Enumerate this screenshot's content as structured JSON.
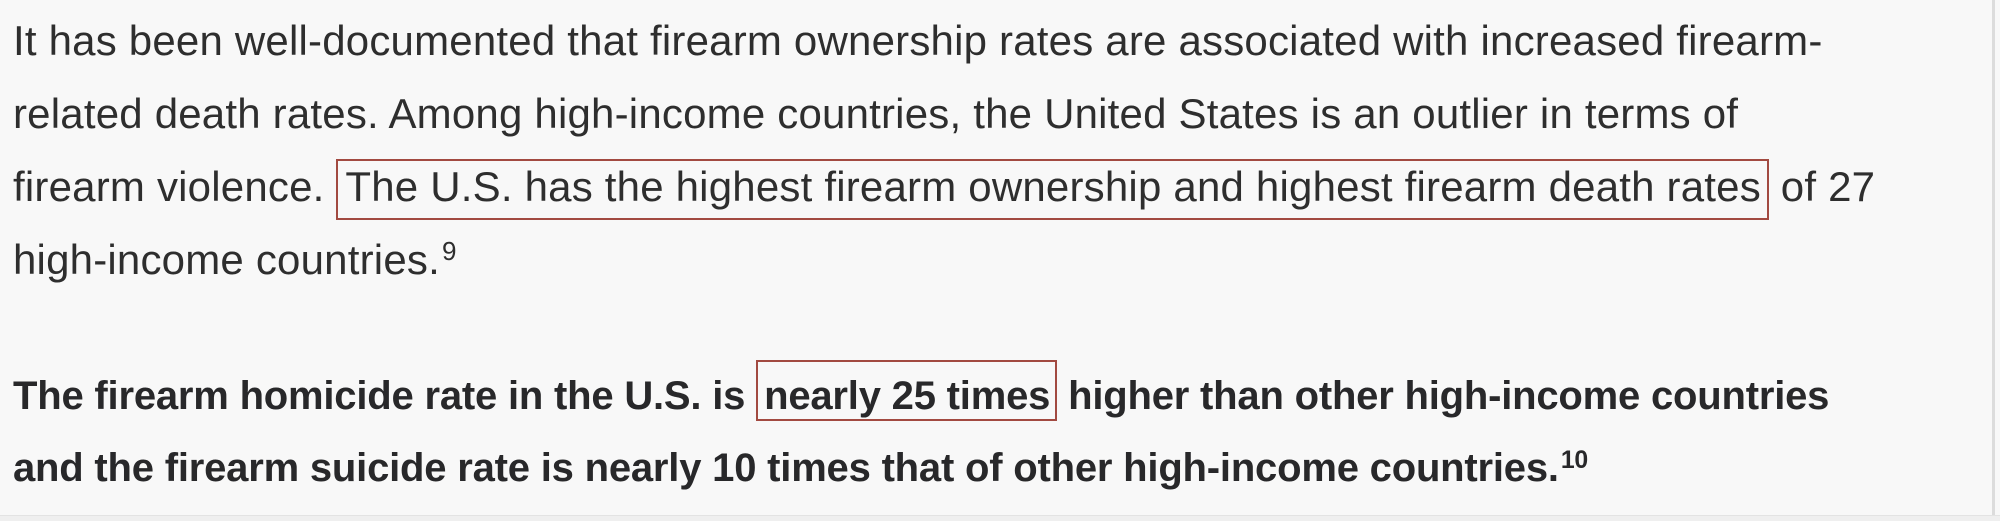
{
  "colors": {
    "bg": "#f8f8f8",
    "text": "#2e2e2e",
    "text-bold": "#28282a",
    "accent": "#a24a41",
    "divider-right": "#dcdcdc",
    "divider-bottom": "#efefef",
    "divider-bottom-edge": "#e3e3e3"
  },
  "article": {
    "paragraph1": {
      "line1": "It has been well-documented that firearm ownership rates are associated with increased firearm-",
      "line2": "related death rates. Among high-income countries, the United States is an outlier in terms of",
      "line3_pre": "firearm violence. ",
      "line3_boxed": "The U.S. has the highest firearm ownership and highest firearm death rates",
      "line3_post": " of 27",
      "line4": "high-income countries.",
      "line4_footnote": "9"
    },
    "paragraph2": {
      "line1_pre": "The firearm homicide rate in the U.S. is ",
      "line1_boxed": "nearly 25 times",
      "line1_post": " higher than other high-income countries",
      "line2": "and the firearm suicide rate is nearly 10 times that of other high-income countries.",
      "line2_footnote": "10"
    }
  }
}
